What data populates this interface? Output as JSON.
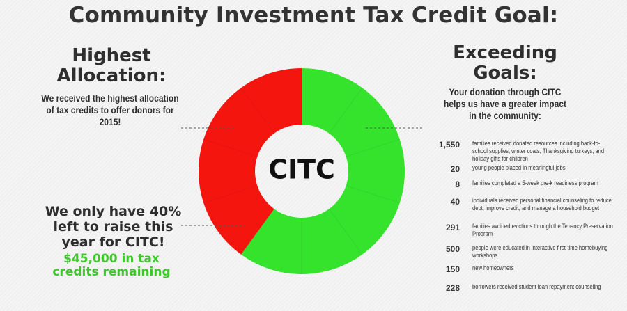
{
  "title": "Community Investment Tax Credit Goal:",
  "left": {
    "heading": "Highest Allocation:",
    "body": "We received the highest allocation of tax credits to offer donors for 2015!",
    "remaining_heading": "We only have 40% left to raise this year for CITC!",
    "remaining_note": "$45,000 in tax credits remaining"
  },
  "right": {
    "heading": "Exceeding Goals:",
    "body": "Your donation through CITC helps us have a greater impact in the community:"
  },
  "stats": [
    {
      "value": "1,550",
      "text": "families received donated resources including back-to-school supplies, winter coats, Thanksgiving turkeys, and holiday gifts for children"
    },
    {
      "value": "20",
      "text": "young people placed in meaningful jobs"
    },
    {
      "value": "8",
      "text": "families completed a 5-week pre-k readiness program"
    },
    {
      "value": "40",
      "text": "individuals received personal financial counseling to reduce debt, improve credit, and manage a household budget"
    },
    {
      "value": "291",
      "text": "families avoided evictions through the Tenancy Preservation Program"
    },
    {
      "value": "500",
      "text": "people were educated in interactive first-time homebuying workshops"
    },
    {
      "value": "150",
      "text": "new homeowners"
    },
    {
      "value": "228",
      "text": "borrowers received student loan repayment counseling"
    }
  ],
  "chart_data": {
    "type": "pie",
    "donut": true,
    "center_label": "CITC",
    "title": "",
    "slices": [
      {
        "name": "",
        "value": 60,
        "color": "#35e22c"
      },
      {
        "name": "",
        "value": 40,
        "color": "#f5150f"
      }
    ],
    "legend": "none"
  },
  "colors": {
    "green": "#35e22c",
    "red": "#f5150f",
    "note_green": "#3ec82c",
    "text": "#2e2e2e"
  }
}
